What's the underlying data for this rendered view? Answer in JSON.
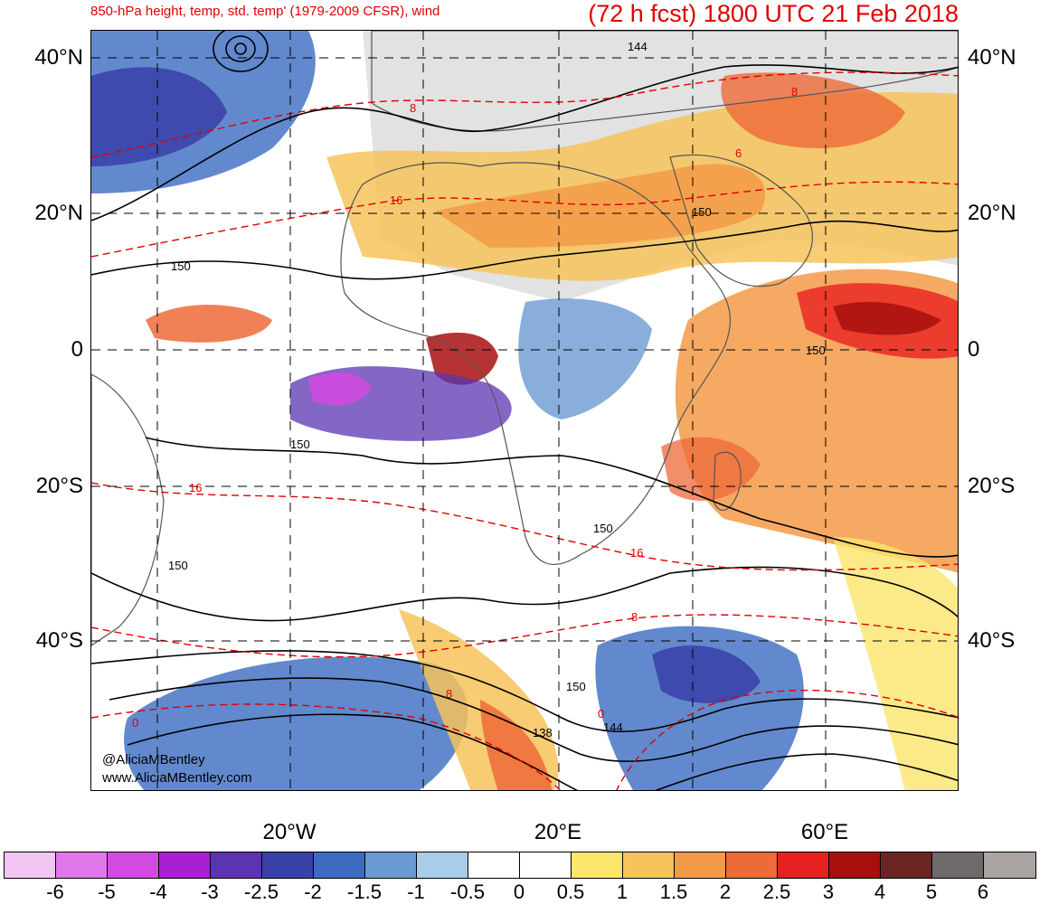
{
  "header": {
    "title_left": "850-hPa height, temp, std. temp' (1979-2009 CFSR), wind",
    "title_right": "(72 h fcst) 1800 UTC 21 Feb 2018"
  },
  "lat_labels": {
    "n40": "40°N",
    "n20": "20°N",
    "eq": "0",
    "s20": "20°S",
    "s40": "40°S"
  },
  "lon_labels": {
    "w20": "20°W",
    "e20": "20°E",
    "e60": "60°E"
  },
  "contour_labels": {
    "h144": "144",
    "h150": "150",
    "h138": "138",
    "t8": "8",
    "t16": "16",
    "t0": "0",
    "t6": "6"
  },
  "credit": {
    "handle": "@AliciaMBentley",
    "url": "www.AliciaMBentley.com"
  },
  "colorbar": {
    "labels": [
      "-6",
      "-5",
      "-4",
      "-3",
      "-2.5",
      "-2",
      "-1.5",
      "-1",
      "-0.5",
      "0",
      "0.5",
      "1",
      "1.5",
      "2",
      "2.5",
      "3",
      "4",
      "5",
      "6"
    ],
    "colors": [
      "#f2c6f2",
      "#e077e8",
      "#d24ae0",
      "#a820d2",
      "#5b34b2",
      "#3940a8",
      "#3b6cc0",
      "#6b9ad2",
      "#a9cce8",
      "#ffffff",
      "#ffffff",
      "#fbe56b",
      "#f6c35a",
      "#f39a48",
      "#ee6a38",
      "#e8201f",
      "#a80f0f",
      "#6b2525",
      "#6e6a6a",
      "#aca3a3"
    ]
  },
  "palette": {
    "title_red": "#e00000",
    "contour_black": "#000000",
    "contour_red": "#e00000",
    "land_gray": "#9a9a9a"
  }
}
